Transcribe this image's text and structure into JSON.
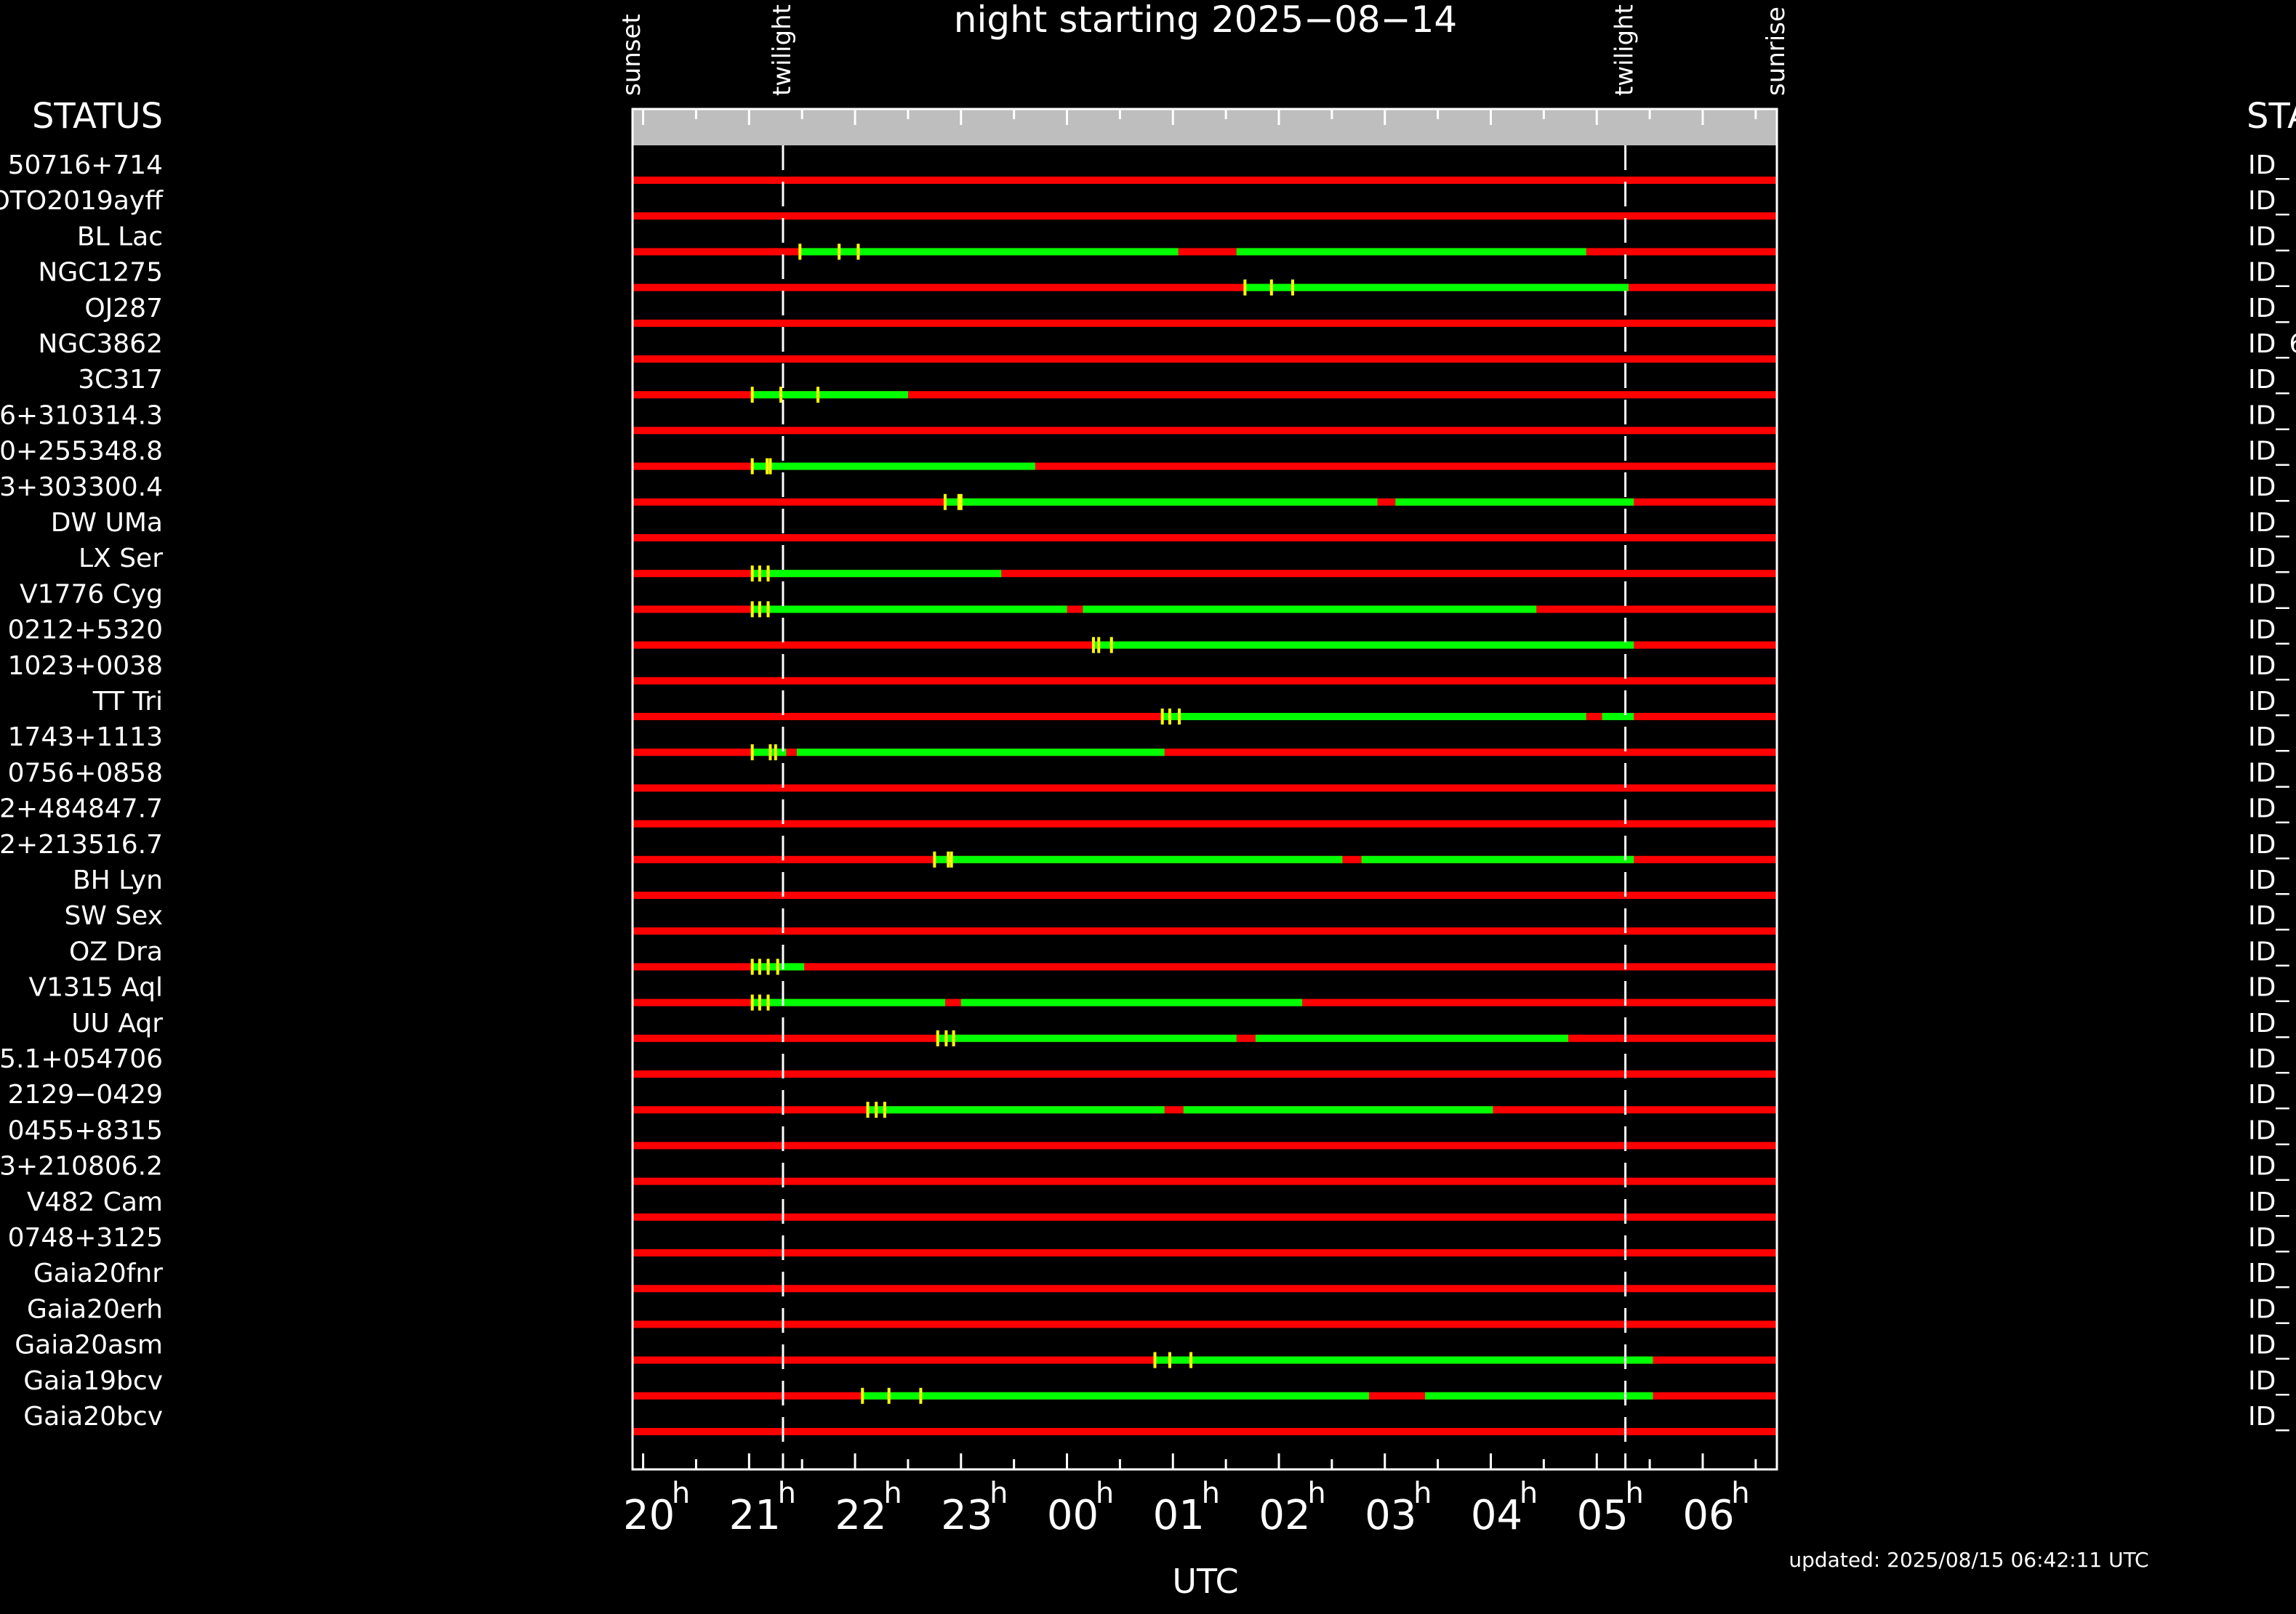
{
  "title": "night starting 2025−08−14",
  "status_left": "STATUS",
  "status_right": "STA",
  "xlabel": "UTC",
  "updated": "updated: 2025/08/15 06:42:11 UTC",
  "markers": {
    "sunset": "sunset",
    "twilight_evening": "twilight",
    "twilight_morning": "twilight",
    "sunrise": "sunrise"
  },
  "colors": {
    "background": "#000000",
    "not_observable": "#ff0000",
    "observable": "#00ff00",
    "tick": "#ffff00",
    "header_band": "#bebebe",
    "axes": "#ffffff"
  },
  "chart_data": {
    "type": "timeline",
    "x_unit": "hours UTC since 20h on 2025-08-14",
    "xlim": [
      19.9,
      30.7
    ],
    "x_ticks": [
      {
        "pos": 20,
        "label": "20",
        "sup": "h"
      },
      {
        "pos": 21,
        "label": "21",
        "sup": "h"
      },
      {
        "pos": 22,
        "label": "22",
        "sup": "h"
      },
      {
        "pos": 23,
        "label": "23",
        "sup": "h"
      },
      {
        "pos": 24,
        "label": "00",
        "sup": "h"
      },
      {
        "pos": 25,
        "label": "01",
        "sup": "h"
      },
      {
        "pos": 26,
        "label": "02",
        "sup": "h"
      },
      {
        "pos": 27,
        "label": "03",
        "sup": "h"
      },
      {
        "pos": 28,
        "label": "04",
        "sup": "h"
      },
      {
        "pos": 29,
        "label": "05",
        "sup": "h"
      },
      {
        "pos": 30,
        "label": "06",
        "sup": "h"
      }
    ],
    "sunset": 19.9,
    "twilight_evening": 21.32,
    "twilight_morning": 29.27,
    "sunrise": 30.7,
    "rows": [
      {
        "name": "50716+714",
        "right_id": "ID_",
        "green": [],
        "ticks": []
      },
      {
        "name": "OTO2019ayff",
        "right_id": "ID_",
        "green": [],
        "ticks": []
      },
      {
        "name": "BL Lac",
        "right_id": "ID_",
        "green": [
          [
            21.48,
            25.05
          ],
          [
            25.6,
            28.9
          ]
        ],
        "ticks": [
          21.48,
          21.85,
          22.03
        ]
      },
      {
        "name": "NGC1275",
        "right_id": "ID_",
        "green": [
          [
            25.68,
            29.3
          ]
        ],
        "ticks": [
          25.68,
          25.93,
          26.13
        ]
      },
      {
        "name": "OJ287",
        "right_id": "ID_",
        "green": [],
        "ticks": []
      },
      {
        "name": "NGC3862",
        "right_id": "ID_6",
        "green": [],
        "ticks": []
      },
      {
        "name": "3C317",
        "right_id": "ID_",
        "green": [
          [
            21.03,
            22.5
          ]
        ],
        "ticks": [
          21.03,
          21.3,
          21.65
        ]
      },
      {
        "name": "6+310314.3",
        "right_id": "ID_",
        "green": [],
        "ticks": []
      },
      {
        "name": "0+255348.8",
        "right_id": "ID_",
        "green": [
          [
            21.03,
            23.7
          ]
        ],
        "ticks": [
          21.03,
          21.17,
          21.2
        ]
      },
      {
        "name": "3+303300.4",
        "right_id": "ID_",
        "green": [
          [
            22.85,
            26.93
          ],
          [
            27.1,
            29.35
          ]
        ],
        "ticks": [
          22.85,
          22.98,
          23.0
        ]
      },
      {
        "name": "DW UMa",
        "right_id": "ID_",
        "green": [],
        "ticks": []
      },
      {
        "name": "LX Ser",
        "right_id": "ID_",
        "green": [
          [
            21.03,
            23.38
          ]
        ],
        "ticks": [
          21.03,
          21.1,
          21.18
        ]
      },
      {
        "name": "V1776 Cyg",
        "right_id": "ID_",
        "green": [
          [
            21.03,
            24.0
          ],
          [
            24.15,
            28.43
          ]
        ],
        "ticks": [
          21.03,
          21.1,
          21.18
        ]
      },
      {
        "name": "0212+5320",
        "right_id": "ID_",
        "green": [
          [
            24.25,
            29.35
          ]
        ],
        "ticks": [
          24.25,
          24.3,
          24.42
        ]
      },
      {
        "name": "1023+0038",
        "right_id": "ID_",
        "green": [],
        "ticks": []
      },
      {
        "name": "TT Tri",
        "right_id": "ID_",
        "green": [
          [
            24.9,
            28.9
          ],
          [
            29.05,
            29.35
          ]
        ],
        "ticks": [
          24.9,
          24.97,
          25.06
        ]
      },
      {
        "name": "1743+1113",
        "right_id": "ID_",
        "green": [
          [
            21.03,
            21.35
          ],
          [
            21.45,
            24.92
          ]
        ],
        "ticks": [
          21.03,
          21.2,
          21.25
        ]
      },
      {
        "name": "0756+0858",
        "right_id": "ID_",
        "green": [],
        "ticks": []
      },
      {
        "name": "2+484847.7",
        "right_id": "ID_",
        "green": [],
        "ticks": []
      },
      {
        "name": "2+213516.7",
        "right_id": "ID_",
        "green": [
          [
            22.75,
            26.6
          ],
          [
            26.78,
            29.35
          ]
        ],
        "ticks": [
          22.75,
          22.88,
          22.91
        ]
      },
      {
        "name": "BH Lyn",
        "right_id": "ID_",
        "green": [],
        "ticks": []
      },
      {
        "name": "SW Sex",
        "right_id": "ID_",
        "green": [],
        "ticks": []
      },
      {
        "name": "OZ Dra",
        "right_id": "ID_",
        "green": [
          [
            21.03,
            21.52
          ]
        ],
        "ticks": [
          21.03,
          21.1,
          21.18,
          21.27
        ]
      },
      {
        "name": "V1315 Aql",
        "right_id": "ID_",
        "green": [
          [
            21.03,
            22.85
          ],
          [
            23.0,
            26.22
          ]
        ],
        "ticks": [
          21.03,
          21.1,
          21.18
        ]
      },
      {
        "name": "UU Aqr",
        "right_id": "ID_",
        "green": [
          [
            22.78,
            25.6
          ],
          [
            25.78,
            28.73
          ]
        ],
        "ticks": [
          22.78,
          22.86,
          22.93
        ]
      },
      {
        "name": "5.1+054706",
        "right_id": "ID_",
        "green": [],
        "ticks": []
      },
      {
        "name": "2129−0429",
        "right_id": "ID_",
        "green": [
          [
            22.12,
            24.92
          ],
          [
            25.1,
            28.02
          ]
        ],
        "ticks": [
          22.12,
          22.2,
          22.28
        ]
      },
      {
        "name": "0455+8315",
        "right_id": "ID_",
        "green": [],
        "ticks": []
      },
      {
        "name": "3+210806.2",
        "right_id": "ID_",
        "green": [],
        "ticks": []
      },
      {
        "name": "V482 Cam",
        "right_id": "ID_",
        "green": [],
        "ticks": []
      },
      {
        "name": "0748+3125",
        "right_id": "ID_",
        "green": [],
        "ticks": []
      },
      {
        "name": "Gaia20fnr",
        "right_id": "ID_",
        "green": [],
        "ticks": []
      },
      {
        "name": "Gaia20erh",
        "right_id": "ID_",
        "green": [],
        "ticks": []
      },
      {
        "name": "Gaia20asm",
        "right_id": "ID_",
        "green": [
          [
            24.83,
            29.53
          ]
        ],
        "ticks": [
          24.83,
          24.97,
          25.17
        ]
      },
      {
        "name": "Gaia19bcv",
        "right_id": "ID_",
        "green": [
          [
            22.07,
            26.85
          ],
          [
            27.38,
            29.53
          ]
        ],
        "ticks": [
          22.07,
          22.32,
          22.62
        ]
      },
      {
        "name": "Gaia20bcv",
        "right_id": "ID_",
        "green": [],
        "ticks": []
      }
    ]
  }
}
